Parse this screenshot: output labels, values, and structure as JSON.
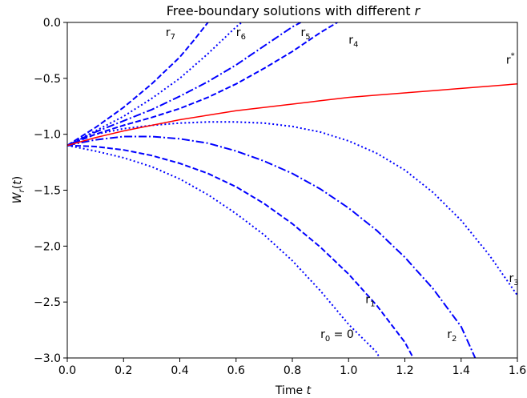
{
  "chart_data": {
    "type": "line",
    "title": "Free-boundary solutions with different r",
    "xlabel": "Time t",
    "ylabel": "W_r(t)",
    "xlim": [
      0.0,
      1.6
    ],
    "ylim": [
      -3.0,
      0.0
    ],
    "grid": false,
    "xticks": [
      "0.0",
      "0.2",
      "0.4",
      "0.6",
      "0.8",
      "1.0",
      "1.2",
      "1.4",
      "1.6"
    ],
    "yticks": [
      "0.0",
      "−0.5",
      "−1.0",
      "−1.5",
      "−2.0",
      "−2.5",
      "−3.0"
    ],
    "colors": {
      "curves": "#0000ff",
      "critical": "#ff0000",
      "axes": "#000000"
    },
    "series": [
      {
        "name": "r0 = 0",
        "style": "dotted",
        "x": [
          0.0,
          0.1,
          0.2,
          0.3,
          0.4,
          0.5,
          0.6,
          0.7,
          0.8,
          0.9,
          1.0,
          1.1,
          1.11
        ],
        "y": [
          -1.1,
          -1.15,
          -1.21,
          -1.29,
          -1.4,
          -1.54,
          -1.71,
          -1.9,
          -2.13,
          -2.4,
          -2.7,
          -2.95,
          -3.0
        ]
      },
      {
        "name": "r1",
        "style": "dashed",
        "x": [
          0.0,
          0.1,
          0.2,
          0.3,
          0.4,
          0.5,
          0.6,
          0.7,
          0.8,
          0.9,
          1.0,
          1.1,
          1.2,
          1.23
        ],
        "y": [
          -1.1,
          -1.11,
          -1.14,
          -1.19,
          -1.26,
          -1.35,
          -1.47,
          -1.62,
          -1.8,
          -2.01,
          -2.25,
          -2.53,
          -2.86,
          -3.0
        ]
      },
      {
        "name": "r2",
        "style": "dashdot",
        "x": [
          0.0,
          0.1,
          0.2,
          0.3,
          0.4,
          0.5,
          0.6,
          0.7,
          0.8,
          0.9,
          1.0,
          1.1,
          1.2,
          1.3,
          1.4,
          1.45
        ],
        "y": [
          -1.1,
          -1.05,
          -1.02,
          -1.02,
          -1.04,
          -1.08,
          -1.15,
          -1.24,
          -1.35,
          -1.49,
          -1.66,
          -1.86,
          -2.1,
          -2.38,
          -2.72,
          -3.0
        ]
      },
      {
        "name": "r3",
        "style": "dotted",
        "x": [
          0.0,
          0.1,
          0.2,
          0.3,
          0.4,
          0.5,
          0.6,
          0.7,
          0.8,
          0.9,
          1.0,
          1.1,
          1.2,
          1.3,
          1.4,
          1.5,
          1.6
        ],
        "y": [
          -1.1,
          -1.0,
          -0.95,
          -0.92,
          -0.9,
          -0.89,
          -0.89,
          -0.9,
          -0.93,
          -0.98,
          -1.06,
          -1.17,
          -1.32,
          -1.52,
          -1.77,
          -2.08,
          -2.44
        ]
      },
      {
        "name": "r4",
        "style": "dashed",
        "x": [
          0.0,
          0.1,
          0.2,
          0.3,
          0.4,
          0.5,
          0.6,
          0.7,
          0.8,
          0.9,
          0.96
        ],
        "y": [
          -1.1,
          -1.0,
          -0.92,
          -0.85,
          -0.77,
          -0.67,
          -0.55,
          -0.41,
          -0.26,
          -0.09,
          0.0
        ]
      },
      {
        "name": "r5",
        "style": "dashdot",
        "x": [
          0.0,
          0.1,
          0.2,
          0.3,
          0.4,
          0.5,
          0.6,
          0.7,
          0.8,
          0.83
        ],
        "y": [
          -1.1,
          -0.98,
          -0.88,
          -0.78,
          -0.66,
          -0.53,
          -0.38,
          -0.21,
          -0.04,
          0.0
        ]
      },
      {
        "name": "r6",
        "style": "dotted",
        "x": [
          0.0,
          0.1,
          0.2,
          0.3,
          0.4,
          0.5,
          0.6,
          0.62
        ],
        "y": [
          -1.1,
          -0.97,
          -0.84,
          -0.68,
          -0.5,
          -0.28,
          -0.04,
          0.0
        ]
      },
      {
        "name": "r7",
        "style": "dashed",
        "x": [
          0.0,
          0.1,
          0.2,
          0.3,
          0.4,
          0.45,
          0.5
        ],
        "y": [
          -1.1,
          -0.94,
          -0.76,
          -0.55,
          -0.31,
          -0.16,
          0.0
        ]
      },
      {
        "name": "r*",
        "style": "solid",
        "x": [
          0.0,
          0.1,
          0.2,
          0.3,
          0.4,
          0.5,
          0.6,
          0.7,
          0.8,
          0.9,
          1.0,
          1.1,
          1.2,
          1.3,
          1.4,
          1.5,
          1.6
        ],
        "y": [
          -1.1,
          -1.03,
          -0.97,
          -0.92,
          -0.87,
          -0.83,
          -0.79,
          -0.76,
          -0.73,
          -0.7,
          -0.67,
          -0.65,
          -0.63,
          -0.61,
          -0.59,
          -0.57,
          -0.55
        ]
      }
    ],
    "annotations": [
      {
        "series": "r0 = 0",
        "x": 0.9,
        "y": -2.82
      },
      {
        "series": "r1",
        "x": 1.06,
        "y": -2.51
      },
      {
        "series": "r2",
        "x": 1.35,
        "y": -2.82
      },
      {
        "series": "r3",
        "x": 1.57,
        "y": -2.32
      },
      {
        "series": "r4",
        "x": 1.0,
        "y": -0.19
      },
      {
        "series": "r5",
        "x": 0.83,
        "y": -0.12
      },
      {
        "series": "r6",
        "x": 0.6,
        "y": -0.12
      },
      {
        "series": "r7",
        "x": 0.35,
        "y": -0.12
      },
      {
        "series": "r*",
        "x": 1.56,
        "y": -0.37
      }
    ]
  }
}
